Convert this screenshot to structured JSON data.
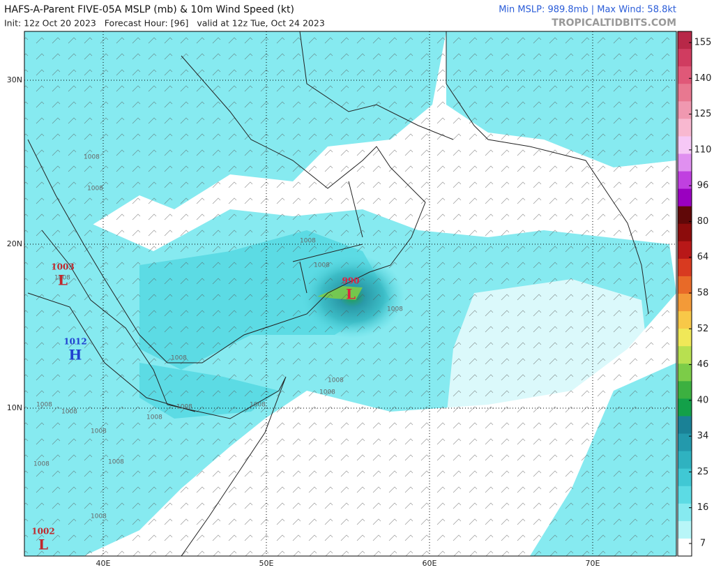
{
  "header": {
    "title": "HAFS-A-Parent FIVE-05A MSLP (mb) & 10m Wind Speed (kt)",
    "subtitle": "Init: 12z Oct 20 2023   Forecast Hour: [96]   valid at 12z Tue, Oct 24 2023",
    "stats": "Min MSLP: 989.8mb | Max Wind: 58.8kt",
    "credit": "TROPICALTIDBITS.COM"
  },
  "map": {
    "lat_labels": [
      "30N",
      "20N",
      "10N"
    ],
    "lon_labels": [
      "40E",
      "50E",
      "60E",
      "70E"
    ],
    "centers": [
      {
        "value": "1003",
        "symbol": "L"
      },
      {
        "value": "990",
        "symbol": "L"
      },
      {
        "value": "1012",
        "symbol": "H"
      },
      {
        "value": "1002",
        "symbol": "L"
      }
    ],
    "isobar_labels": [
      "1008",
      "1008",
      "1008",
      "1008",
      "1008",
      "1008",
      "1008",
      "1008",
      "1008",
      "1008",
      "1008",
      "1008",
      "1008",
      "1008",
      "1008",
      "1008",
      "1008",
      "1008"
    ]
  },
  "colorbar": {
    "ticks": [
      7,
      16,
      25,
      34,
      40,
      46,
      52,
      58,
      64,
      80,
      96,
      110,
      125,
      140,
      155
    ],
    "colors": [
      "#ffffff",
      "#b8f6f8",
      "#86eaf0",
      "#5cdbe4",
      "#40c8d4",
      "#2fb2c0",
      "#2399ac",
      "#1a8196",
      "#13a049",
      "#3cb040",
      "#7ccc48",
      "#b8e050",
      "#f0e858",
      "#f8c848",
      "#f39a38",
      "#e86a28",
      "#d83a20",
      "#b81818",
      "#8c0c0c",
      "#600808",
      "#9a00c0",
      "#c040e0",
      "#e090f0",
      "#f6c8f6",
      "#f8b8d0",
      "#f098b0",
      "#e87890",
      "#e05878",
      "#d03c60",
      "#b82848"
    ]
  }
}
